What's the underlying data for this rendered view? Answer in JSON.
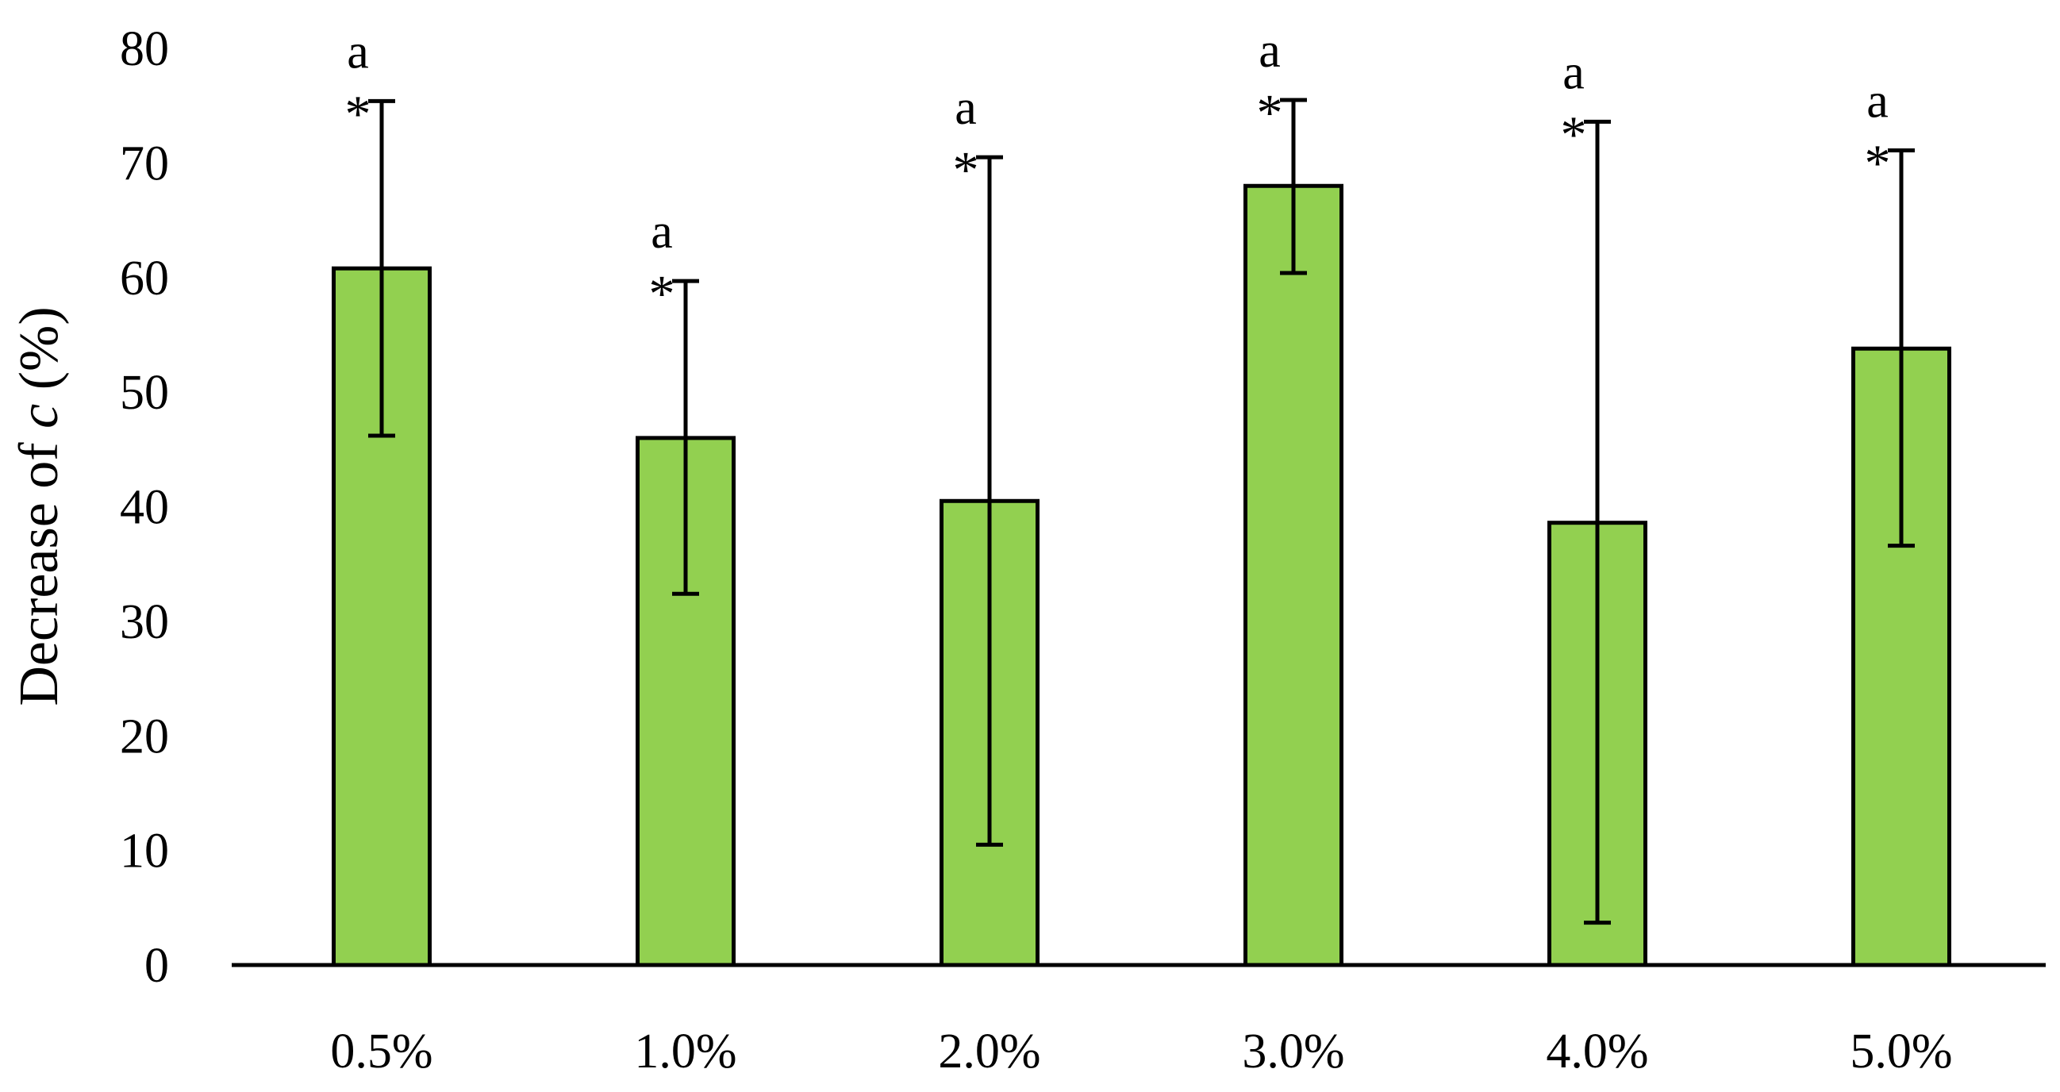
{
  "chart_data": {
    "type": "bar",
    "title": "",
    "xlabel": "",
    "ylabel_parts": [
      "Decrease of ",
      "c",
      " (%)"
    ],
    "categories": [
      "0.5%",
      "1.0%",
      "2.0%",
      "3.0%",
      "4.0%",
      "5.0%"
    ],
    "values": [
      60.8,
      46.0,
      40.5,
      68.0,
      38.6,
      53.8
    ],
    "error_low": [
      46.2,
      32.4,
      10.5,
      60.4,
      3.7,
      36.6
    ],
    "error_high": [
      75.4,
      59.7,
      70.5,
      75.5,
      73.6,
      71.1
    ],
    "annotations": [
      {
        "letter": "a",
        "symbol": "*"
      },
      {
        "letter": "a",
        "symbol": "*"
      },
      {
        "letter": "a",
        "symbol": "*"
      },
      {
        "letter": "a",
        "symbol": "*"
      },
      {
        "letter": "a",
        "symbol": "*"
      },
      {
        "letter": "a",
        "symbol": "*"
      }
    ],
    "ylim": [
      0,
      80
    ],
    "yticks": [
      0,
      10,
      20,
      30,
      40,
      50,
      60,
      70,
      80
    ],
    "grid": false,
    "legend": "none",
    "colors": {
      "bar_fill": "#92d050",
      "bar_edge": "#000000",
      "axis": "#000000",
      "error_bar": "#000000",
      "text": "#000000"
    }
  }
}
